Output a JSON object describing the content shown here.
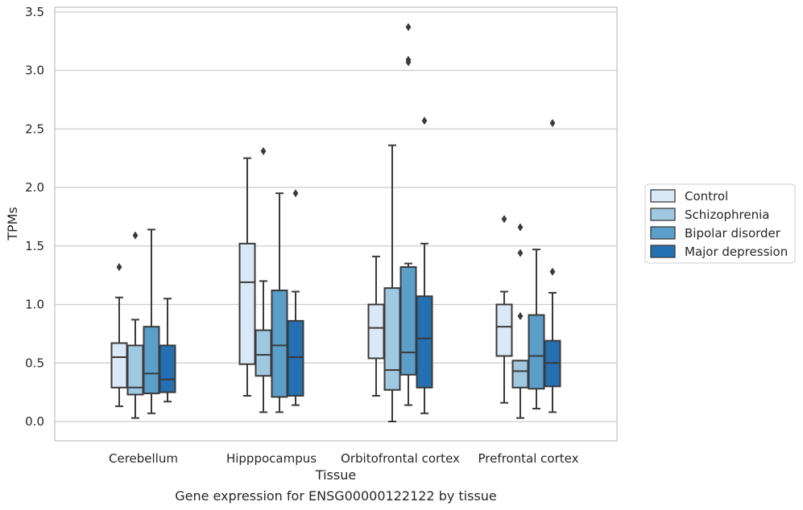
{
  "chart_data": {
    "type": "box",
    "caption": "Gene expression for ENSG00000122122 by tissue",
    "xlabel": "Tissue",
    "ylabel": "TPMs",
    "ylim": [
      -0.16,
      3.56
    ],
    "yticks": [
      "0.0",
      "0.5",
      "1.0",
      "1.5",
      "2.0",
      "2.5",
      "3.0",
      "3.5"
    ],
    "grid": "horizontal",
    "legend_position": "right",
    "categories": [
      "Cerebellum",
      "Hipppocampus",
      "Orbitofrontal cortex",
      "Prefrontal cortex"
    ],
    "series": [
      {
        "name": "Control",
        "color": "#dbe9f6",
        "boxes": [
          {
            "whislo": 0.13,
            "q1": 0.29,
            "med": 0.55,
            "q3": 0.67,
            "whishi": 1.06,
            "fliers": [
              1.32
            ]
          },
          {
            "whislo": 0.22,
            "q1": 0.49,
            "med": 1.19,
            "q3": 1.52,
            "whishi": 2.25,
            "fliers": []
          },
          {
            "whislo": 0.22,
            "q1": 0.54,
            "med": 0.8,
            "q3": 1.0,
            "whishi": 1.41,
            "fliers": []
          },
          {
            "whislo": 0.16,
            "q1": 0.56,
            "med": 0.81,
            "q3": 1.0,
            "whishi": 1.11,
            "fliers": [
              1.73
            ]
          }
        ]
      },
      {
        "name": "Schizophrenia",
        "color": "#a0c8e0",
        "boxes": [
          {
            "whislo": 0.03,
            "q1": 0.23,
            "med": 0.29,
            "q3": 0.65,
            "whishi": 0.87,
            "fliers": [
              1.59
            ]
          },
          {
            "whislo": 0.08,
            "q1": 0.39,
            "med": 0.57,
            "q3": 0.78,
            "whishi": 1.2,
            "fliers": [
              2.31
            ]
          },
          {
            "whislo": 0.0,
            "q1": 0.27,
            "med": 0.44,
            "q3": 1.14,
            "whishi": 2.36,
            "fliers": []
          },
          {
            "whislo": 0.03,
            "q1": 0.29,
            "med": 0.43,
            "q3": 0.52,
            "whishi": 0.52,
            "fliers": [
              0.9,
              1.44,
              1.66
            ]
          }
        ]
      },
      {
        "name": "Bipolar disorder",
        "color": "#5a9ec9",
        "boxes": [
          {
            "whislo": 0.07,
            "q1": 0.24,
            "med": 0.41,
            "q3": 0.81,
            "whishi": 1.64,
            "fliers": []
          },
          {
            "whislo": 0.08,
            "q1": 0.21,
            "med": 0.65,
            "q3": 1.12,
            "whishi": 1.95,
            "fliers": []
          },
          {
            "whislo": 0.14,
            "q1": 0.4,
            "med": 0.59,
            "q3": 1.32,
            "whishi": 1.35,
            "fliers": [
              3.07,
              3.09,
              3.37
            ]
          },
          {
            "whislo": 0.11,
            "q1": 0.28,
            "med": 0.56,
            "q3": 0.91,
            "whishi": 1.47,
            "fliers": []
          }
        ]
      },
      {
        "name": "Major depression",
        "color": "#2470b0",
        "boxes": [
          {
            "whislo": 0.17,
            "q1": 0.25,
            "med": 0.36,
            "q3": 0.65,
            "whishi": 1.05,
            "fliers": []
          },
          {
            "whislo": 0.14,
            "q1": 0.22,
            "med": 0.55,
            "q3": 0.86,
            "whishi": 1.11,
            "fliers": [
              1.95
            ]
          },
          {
            "whislo": 0.07,
            "q1": 0.29,
            "med": 0.71,
            "q3": 1.07,
            "whishi": 1.52,
            "fliers": [
              2.57
            ]
          },
          {
            "whislo": 0.08,
            "q1": 0.3,
            "med": 0.5,
            "q3": 0.69,
            "whishi": 1.1,
            "fliers": [
              1.28,
              2.55
            ]
          }
        ]
      }
    ]
  }
}
